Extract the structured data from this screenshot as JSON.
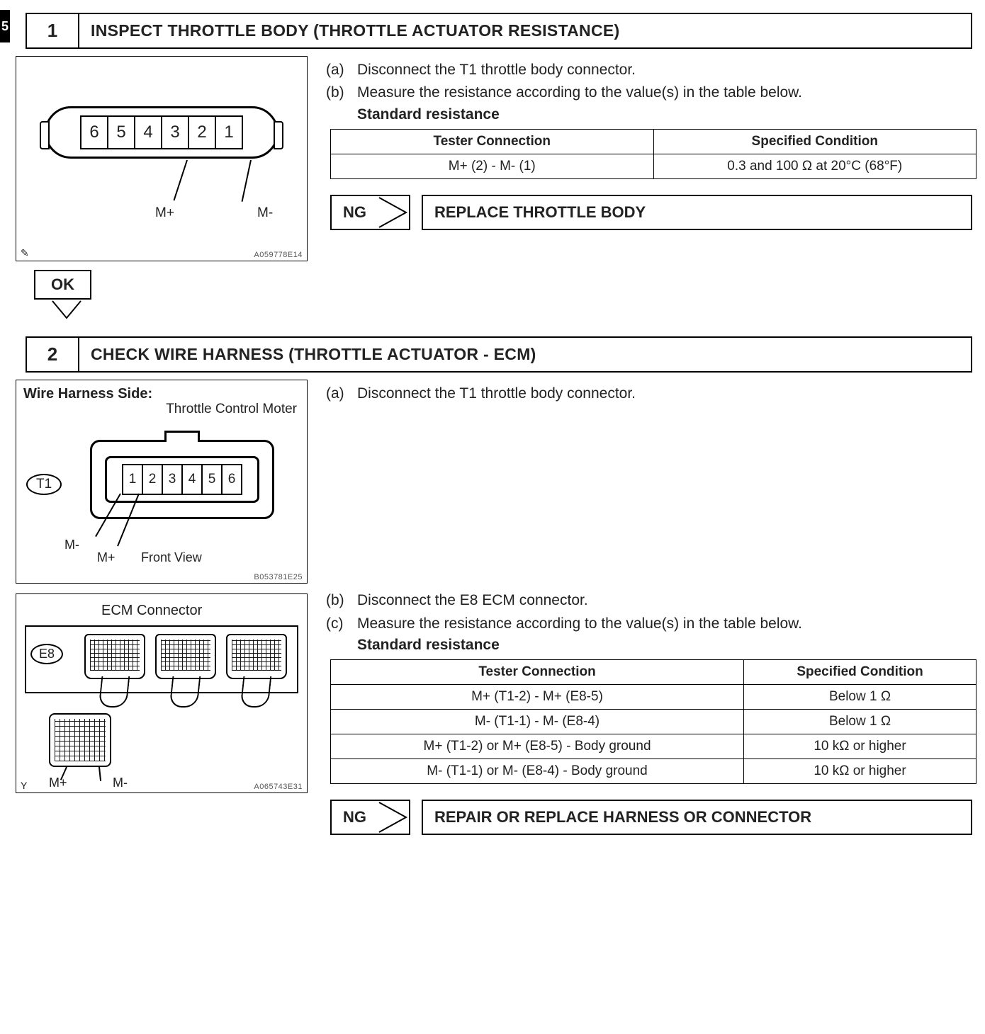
{
  "sidebar_tab": "5",
  "step1": {
    "num": "1",
    "title": "INSPECT THROTTLE BODY (THROTTLE ACTUATOR RESISTANCE)",
    "fig_id": "A059778E14",
    "fig_corner": "✎",
    "conn_labels": [
      "6",
      "5",
      "4",
      "3",
      "2",
      "1"
    ],
    "lead_m_plus": "M+",
    "lead_m_minus": "M-",
    "inst_a_lett": "(a)",
    "inst_a": "Disconnect the T1 throttle body connector.",
    "inst_b_lett": "(b)",
    "inst_b": "Measure the resistance according to the value(s) in the table below.",
    "std_res": "Standard resistance",
    "table": {
      "h1": "Tester Connection",
      "h2": "Specified Condition",
      "r1c1": "M+ (2) - M- (1)",
      "r1c2": "0.3 and 100 Ω at 20°C (68°F)"
    },
    "ng": "NG",
    "ng_action": "REPLACE THROTTLE BODY",
    "ok": "OK"
  },
  "step2": {
    "num": "2",
    "title": "CHECK WIRE HARNESS (THROTTLE ACTUATOR - ECM)",
    "fig2_id": "B053781E25",
    "fig2_title1": "Wire Harness Side:",
    "fig2_title2": "Throttle Control Moter",
    "t1_label": "T1",
    "conn_labels": [
      "1",
      "2",
      "3",
      "4",
      "5",
      "6"
    ],
    "m_minus": "M-",
    "m_plus": "M+",
    "front_view": "Front View",
    "inst_a_lett": "(a)",
    "inst_a": "Disconnect the T1 throttle body connector.",
    "fig3_id": "A065743E31",
    "fig3_title": "ECM Connector",
    "e8_label": "E8",
    "small_m_plus": "M+",
    "small_m_minus": "M-",
    "fig3_corner": "Y",
    "inst_b_lett": "(b)",
    "inst_b": "Disconnect the E8 ECM connector.",
    "inst_c_lett": "(c)",
    "inst_c": "Measure the resistance according to the value(s) in the table below.",
    "std_res": "Standard resistance",
    "table": {
      "h1": "Tester Connection",
      "h2": "Specified Condition",
      "rows": [
        [
          "M+ (T1-2) - M+ (E8-5)",
          "Below 1 Ω"
        ],
        [
          "M- (T1-1) - M- (E8-4)",
          "Below 1 Ω"
        ],
        [
          "M+ (T1-2) or M+ (E8-5) - Body ground",
          "10 kΩ or higher"
        ],
        [
          "M- (T1-1) or M- (E8-4) - Body ground",
          "10 kΩ or higher"
        ]
      ]
    },
    "ng": "NG",
    "ng_action": "REPAIR OR REPLACE HARNESS OR CONNECTOR"
  },
  "colors": {
    "border": "#000000",
    "text": "#222222",
    "bg": "#ffffff",
    "figid": "#555555"
  },
  "table2_col_widths": [
    "64%",
    "36%"
  ]
}
